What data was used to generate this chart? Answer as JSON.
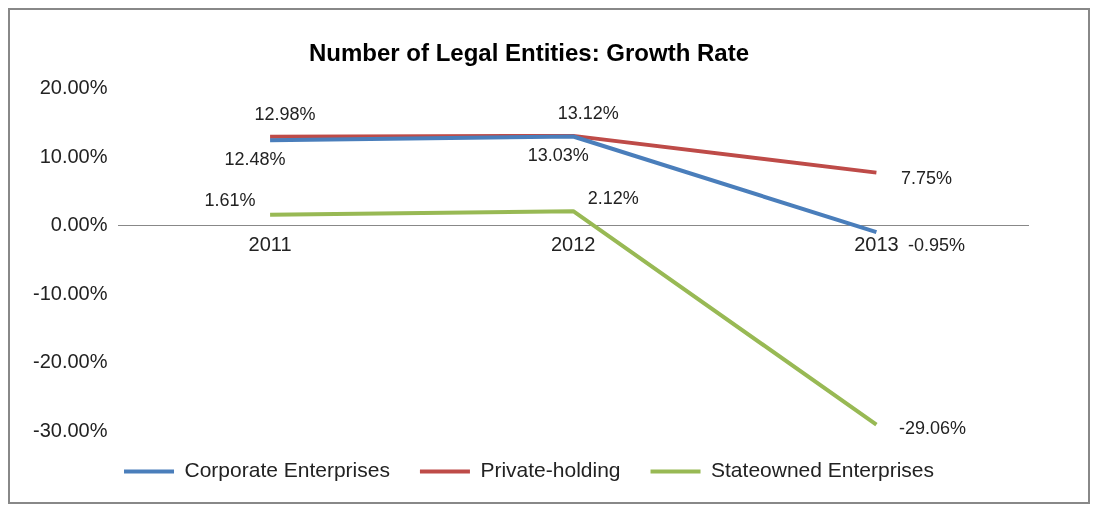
{
  "chart_data": {
    "type": "line",
    "title": "Number of Legal Entities: Growth Rate",
    "categories": [
      "2011",
      "2012",
      "2013"
    ],
    "series": [
      {
        "name": "Corporate Enterprises",
        "color": "#4a7ebb",
        "values": [
          12.48,
          13.03,
          -0.95
        ],
        "value_labels": [
          "12.48%",
          "13.03%",
          "-0.95%"
        ]
      },
      {
        "name": "Private-holding",
        "color": "#be4b48",
        "values": [
          12.98,
          13.12,
          7.75
        ],
        "value_labels": [
          "12.98%",
          "13.12%",
          "7.75%"
        ]
      },
      {
        "name": "Stateowned Enterprises",
        "color": "#98b954",
        "values": [
          1.61,
          2.12,
          -29.06
        ],
        "value_labels": [
          "1.61%",
          "2.12%",
          "-29.06%"
        ]
      }
    ],
    "ylim": [
      -30,
      20
    ],
    "yticks": [
      {
        "value": -30,
        "label": "-30.00%"
      },
      {
        "value": -20,
        "label": "-20.00%"
      },
      {
        "value": -10,
        "label": "-10.00%"
      },
      {
        "value": 0,
        "label": "0.00%"
      },
      {
        "value": 10,
        "label": "10.00%"
      },
      {
        "value": 20,
        "label": "20.00%"
      }
    ],
    "grid": false,
    "legend": "bottom",
    "marker": "none",
    "line_style": "solid"
  }
}
